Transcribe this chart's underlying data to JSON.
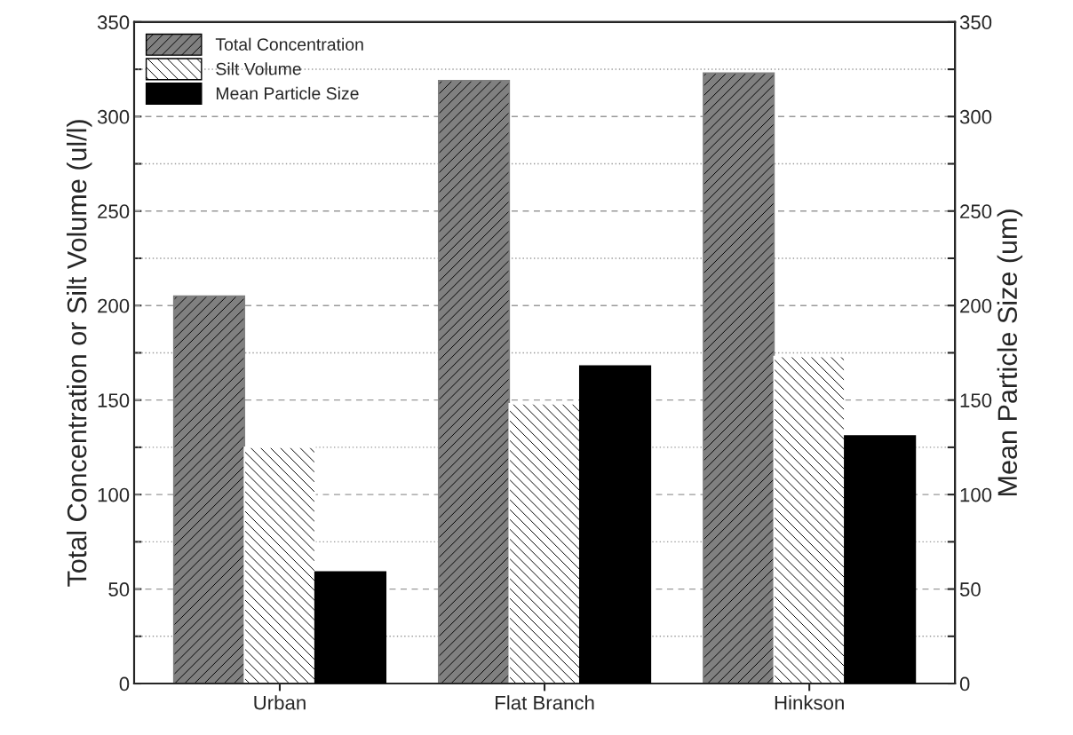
{
  "chart_data": {
    "type": "bar",
    "categories": [
      "Urban",
      "Flat Branch",
      "Hinkson"
    ],
    "series": [
      {
        "name": "Total Concentration",
        "color": "#808080",
        "values": [
          205,
          319,
          323
        ]
      },
      {
        "name": "Silt Volume",
        "color": "#ffffff",
        "values": [
          125,
          148,
          173
        ]
      },
      {
        "name": "Mean Particle Size",
        "color": "#000000",
        "values": [
          59,
          168,
          131
        ],
        "axis": "y2"
      }
    ],
    "ylabel": "Total Concentration or Silt Volume (ul/l)",
    "y2label": "Mean Particle Size (um)",
    "ylim": [
      0,
      350
    ],
    "yticks": [
      0,
      {
        "value": 25,
        "label": null
      },
      50,
      {
        "value": 75,
        "label": null
      },
      100,
      {
        "value": 125,
        "label": null
      },
      150,
      {
        "value": 175,
        "label": null
      },
      200,
      {
        "value": 225,
        "label": null
      },
      250,
      {
        "value": 275,
        "label": null
      },
      300,
      {
        "value": 325,
        "label": null
      },
      350
    ],
    "y2lim": [
      0,
      350
    ],
    "y2ticks": [
      0,
      {
        "value": 25,
        "label": null
      },
      50,
      {
        "value": 75,
        "label": null
      },
      100,
      {
        "value": 125,
        "label": null
      },
      150,
      {
        "value": 175,
        "label": null
      },
      200,
      {
        "value": 225,
        "label": null
      },
      250,
      {
        "value": 275,
        "label": null
      },
      300,
      {
        "value": 325,
        "label": null
      },
      350
    ],
    "grid": "y",
    "legend": "top left"
  }
}
